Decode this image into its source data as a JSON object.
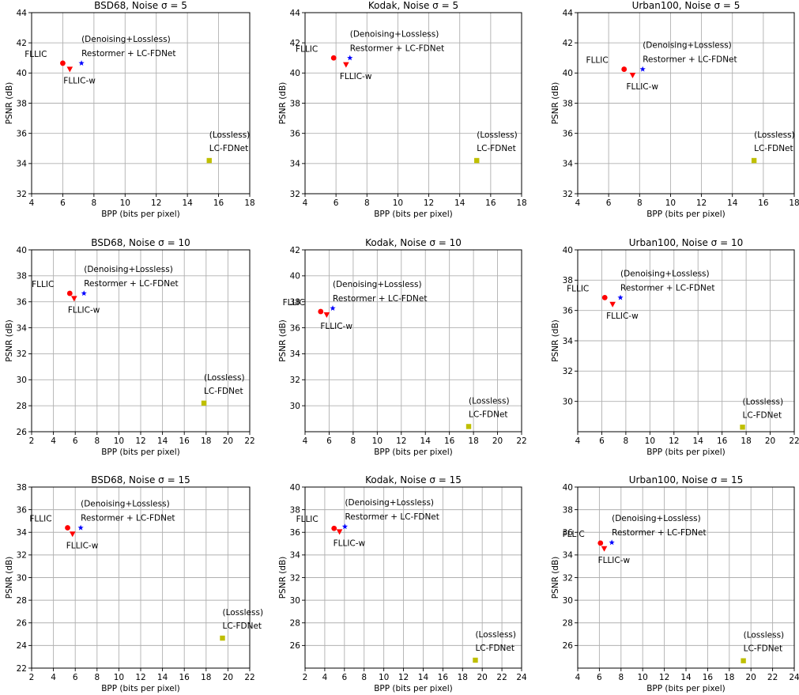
{
  "chart_data": [
    {
      "type": "scatter",
      "title": "BSD68, Noise σ = 5",
      "xlabel": "BPP (bits per pixel)",
      "ylabel": "PSNR (dB)",
      "xlim": [
        4,
        18
      ],
      "ylim": [
        32,
        44
      ],
      "xticks": [
        4,
        6,
        8,
        10,
        12,
        14,
        16,
        18
      ],
      "yticks": [
        32,
        34,
        36,
        38,
        40,
        42,
        44
      ],
      "grid": true,
      "points": [
        {
          "series": "FLLIC",
          "x": 6.0,
          "y": 40.65,
          "marker": "circle",
          "color": "#ff0000",
          "labels": [
            "FLLIC"
          ]
        },
        {
          "series": "FLLIC-w",
          "x": 6.45,
          "y": 40.25,
          "marker": "triangle-down",
          "color": "#ff0000",
          "labels": [
            "FLLIC-w"
          ]
        },
        {
          "series": "Restormer + LC-FDNet",
          "x": 7.2,
          "y": 40.65,
          "marker": "star",
          "color": "#0000ff",
          "labels": [
            "(Denoising+Lossless)",
            "Restormer + LC-FDNet"
          ]
        },
        {
          "series": "LC-FDNet",
          "x": 15.4,
          "y": 34.2,
          "marker": "square",
          "color": "#bfbf00",
          "labels": [
            "(Lossless)",
            "LC-FDNet"
          ]
        }
      ]
    },
    {
      "type": "scatter",
      "title": "Kodak, Noise σ = 5",
      "xlabel": "BPP (bits per pixel)",
      "ylabel": "PSNR (dB)",
      "xlim": [
        4,
        18
      ],
      "ylim": [
        32,
        44
      ],
      "xticks": [
        4,
        6,
        8,
        10,
        12,
        14,
        16,
        18
      ],
      "yticks": [
        32,
        34,
        36,
        38,
        40,
        42,
        44
      ],
      "grid": true,
      "points": [
        {
          "series": "FLLIC",
          "x": 5.85,
          "y": 41.0,
          "marker": "circle",
          "color": "#ff0000",
          "labels": [
            "FLLIC"
          ]
        },
        {
          "series": "FLLIC-w",
          "x": 6.65,
          "y": 40.55,
          "marker": "triangle-down",
          "color": "#ff0000",
          "labels": [
            "FLLIC-w"
          ]
        },
        {
          "series": "Restormer + LC-FDNet",
          "x": 6.9,
          "y": 41.0,
          "marker": "star",
          "color": "#0000ff",
          "labels": [
            "(Denoising+Lossless)",
            "Restormer + LC-FDNet"
          ]
        },
        {
          "series": "LC-FDNet",
          "x": 15.1,
          "y": 34.2,
          "marker": "square",
          "color": "#bfbf00",
          "labels": [
            "(Lossless)",
            "LC-FDNet"
          ]
        }
      ]
    },
    {
      "type": "scatter",
      "title": "Urban100, Noise σ = 5",
      "xlabel": "BPP (bits per pixel)",
      "ylabel": "PSNR (dB)",
      "xlim": [
        4,
        18
      ],
      "ylim": [
        32,
        44
      ],
      "xticks": [
        4,
        6,
        8,
        10,
        12,
        14,
        16,
        18
      ],
      "yticks": [
        32,
        34,
        36,
        38,
        40,
        42,
        44
      ],
      "grid": true,
      "points": [
        {
          "series": "FLLIC",
          "x": 7.0,
          "y": 40.25,
          "marker": "circle",
          "color": "#ff0000",
          "labels": [
            "FLLIC"
          ]
        },
        {
          "series": "FLLIC-w",
          "x": 7.55,
          "y": 39.85,
          "marker": "triangle-down",
          "color": "#ff0000",
          "labels": [
            "FLLIC-w"
          ]
        },
        {
          "series": "Restormer + LC-FDNet",
          "x": 8.2,
          "y": 40.25,
          "marker": "star",
          "color": "#0000ff",
          "labels": [
            "(Denoising+Lossless)",
            "Restormer + LC-FDNet"
          ]
        },
        {
          "series": "LC-FDNet",
          "x": 15.4,
          "y": 34.2,
          "marker": "square",
          "color": "#bfbf00",
          "labels": [
            "(Lossless)",
            "LC-FDNet"
          ]
        }
      ]
    },
    {
      "type": "scatter",
      "title": "BSD68, Noise σ = 10",
      "xlabel": "BPP (bits per pixel)",
      "ylabel": "PSNR (dB)",
      "xlim": [
        2,
        22
      ],
      "ylim": [
        26,
        40
      ],
      "xticks": [
        2,
        4,
        6,
        8,
        10,
        12,
        14,
        16,
        18,
        20,
        22
      ],
      "yticks": [
        26,
        28,
        30,
        32,
        34,
        36,
        38,
        40
      ],
      "grid": true,
      "points": [
        {
          "series": "FLLIC",
          "x": 5.5,
          "y": 36.65,
          "marker": "circle",
          "color": "#ff0000",
          "labels": [
            "FLLIC"
          ]
        },
        {
          "series": "FLLIC-w",
          "x": 5.9,
          "y": 36.25,
          "marker": "triangle-down",
          "color": "#ff0000",
          "labels": [
            "FLLIC-w"
          ]
        },
        {
          "series": "Restormer + LC-FDNet",
          "x": 6.8,
          "y": 36.65,
          "marker": "star",
          "color": "#0000ff",
          "labels": [
            "(Denoising+Lossless)",
            "Restormer + LC-FDNet"
          ]
        },
        {
          "series": "LC-FDNet",
          "x": 17.8,
          "y": 28.2,
          "marker": "square",
          "color": "#bfbf00",
          "labels": [
            "(Lossless)",
            "LC-FDNet"
          ]
        }
      ]
    },
    {
      "type": "scatter",
      "title": "Kodak, Noise σ = 10",
      "xlabel": "BPP (bits per pixel)",
      "ylabel": "PSNR (dB)",
      "xlim": [
        4,
        22
      ],
      "ylim": [
        28,
        42
      ],
      "xticks": [
        4,
        6,
        8,
        10,
        12,
        14,
        16,
        18,
        20,
        22
      ],
      "yticks": [
        30,
        32,
        34,
        36,
        38,
        40,
        42
      ],
      "grid": true,
      "points": [
        {
          "series": "FLLIC",
          "x": 5.3,
          "y": 37.25,
          "marker": "circle",
          "color": "#ff0000",
          "labels": [
            "FLLIC"
          ]
        },
        {
          "series": "FLLIC-w",
          "x": 5.8,
          "y": 37.0,
          "marker": "triangle-down",
          "color": "#ff0000",
          "labels": [
            "FLLIC-w"
          ]
        },
        {
          "series": "Restormer + LC-FDNet",
          "x": 6.3,
          "y": 37.5,
          "marker": "star",
          "color": "#0000ff",
          "labels": [
            "(Denoising+Lossless)",
            "Restormer + LC-FDNet"
          ]
        },
        {
          "series": "LC-FDNet",
          "x": 17.6,
          "y": 28.4,
          "marker": "square",
          "color": "#bfbf00",
          "labels": [
            "(Lossless)",
            "LC-FDNet"
          ]
        }
      ]
    },
    {
      "type": "scatter",
      "title": "Urban100, Noise σ = 10",
      "xlabel": "BPP (bits per pixel)",
      "ylabel": "PSNR (dB)",
      "xlim": [
        4,
        22
      ],
      "ylim": [
        28,
        40
      ],
      "xticks": [
        4,
        6,
        8,
        10,
        12,
        14,
        16,
        18,
        20,
        22
      ],
      "yticks": [
        30,
        32,
        34,
        36,
        38,
        40
      ],
      "grid": true,
      "points": [
        {
          "series": "FLLIC",
          "x": 6.25,
          "y": 36.85,
          "marker": "circle",
          "color": "#ff0000",
          "labels": [
            "FLLIC"
          ]
        },
        {
          "series": "FLLIC-w",
          "x": 6.9,
          "y": 36.4,
          "marker": "triangle-down",
          "color": "#ff0000",
          "labels": [
            "FLLIC-w"
          ]
        },
        {
          "series": "Restormer + LC-FDNet",
          "x": 7.55,
          "y": 36.85,
          "marker": "star",
          "color": "#0000ff",
          "labels": [
            "(Denoising+Lossless)",
            "Restormer + LC-FDNet"
          ]
        },
        {
          "series": "LC-FDNet",
          "x": 17.7,
          "y": 28.3,
          "marker": "square",
          "color": "#bfbf00",
          "labels": [
            "(Lossless)",
            "LC-FDNet"
          ]
        }
      ]
    },
    {
      "type": "scatter",
      "title": "BSD68, Noise σ = 15",
      "xlabel": "BPP (bits per pixel)",
      "ylabel": "PSNR (dB)",
      "xlim": [
        2,
        22
      ],
      "ylim": [
        22,
        38
      ],
      "xticks": [
        2,
        4,
        6,
        8,
        10,
        12,
        14,
        16,
        18,
        20,
        22
      ],
      "yticks": [
        22,
        24,
        26,
        28,
        30,
        32,
        34,
        36,
        38
      ],
      "grid": true,
      "points": [
        {
          "series": "FLLIC",
          "x": 5.3,
          "y": 34.4,
          "marker": "circle",
          "color": "#ff0000",
          "labels": [
            "FLLIC"
          ]
        },
        {
          "series": "FLLIC-w",
          "x": 5.75,
          "y": 33.85,
          "marker": "triangle-down",
          "color": "#ff0000",
          "labels": [
            "FLLIC-w"
          ]
        },
        {
          "series": "Restormer + LC-FDNet",
          "x": 6.5,
          "y": 34.4,
          "marker": "star",
          "color": "#0000ff",
          "labels": [
            "(Denoising+Lossless)",
            "Restormer + LC-FDNet"
          ]
        },
        {
          "series": "LC-FDNet",
          "x": 19.5,
          "y": 24.65,
          "marker": "square",
          "color": "#bfbf00",
          "labels": [
            "(Lossless)",
            "LC-FDNet"
          ]
        }
      ]
    },
    {
      "type": "scatter",
      "title": "Kodak, Noise σ = 15",
      "xlabel": "BPP (bits per pixel)",
      "ylabel": "PSNR (dB)",
      "xlim": [
        2,
        24
      ],
      "ylim": [
        24,
        40
      ],
      "xticks": [
        2,
        4,
        6,
        8,
        10,
        12,
        14,
        16,
        18,
        20,
        22,
        24
      ],
      "yticks": [
        26,
        28,
        30,
        32,
        34,
        36,
        38,
        40
      ],
      "grid": true,
      "points": [
        {
          "series": "FLLIC",
          "x": 4.95,
          "y": 36.35,
          "marker": "circle",
          "color": "#ff0000",
          "labels": [
            "FLLIC"
          ]
        },
        {
          "series": "FLLIC-w",
          "x": 5.5,
          "y": 36.05,
          "marker": "triangle-down",
          "color": "#ff0000",
          "labels": [
            "FLLIC-w"
          ]
        },
        {
          "series": "Restormer + LC-FDNet",
          "x": 6.05,
          "y": 36.5,
          "marker": "star",
          "color": "#0000ff",
          "labels": [
            "(Denoising+Lossless)",
            "Restormer + LC-FDNet"
          ]
        },
        {
          "series": "LC-FDNet",
          "x": 19.3,
          "y": 24.7,
          "marker": "square",
          "color": "#bfbf00",
          "labels": [
            "(Lossless)",
            "LC-FDNet"
          ]
        }
      ]
    },
    {
      "type": "scatter",
      "title": "Urban100, Noise σ = 15",
      "xlabel": "BPP (bits per pixel)",
      "ylabel": "PSNR (dB)",
      "xlim": [
        4,
        24
      ],
      "ylim": [
        24,
        40
      ],
      "xticks": [
        4,
        6,
        8,
        10,
        12,
        14,
        16,
        18,
        20,
        22,
        24
      ],
      "yticks": [
        26,
        28,
        30,
        32,
        34,
        36,
        38,
        40
      ],
      "grid": true,
      "points": [
        {
          "series": "FLLIC",
          "x": 6.1,
          "y": 35.05,
          "marker": "circle",
          "color": "#ff0000",
          "labels": [
            "FLLIC"
          ]
        },
        {
          "series": "FLLIC-w",
          "x": 6.45,
          "y": 34.55,
          "marker": "triangle-down",
          "color": "#ff0000",
          "labels": [
            "FLLIC-w"
          ]
        },
        {
          "series": "Restormer + LC-FDNet",
          "x": 7.15,
          "y": 35.1,
          "marker": "star",
          "color": "#0000ff",
          "labels": [
            "(Denoising+Lossless)",
            "Restormer + LC-FDNet"
          ]
        },
        {
          "series": "LC-FDNet",
          "x": 19.3,
          "y": 24.65,
          "marker": "square",
          "color": "#bfbf00",
          "labels": [
            "(Lossless)",
            "LC-FDNet"
          ]
        }
      ]
    }
  ]
}
